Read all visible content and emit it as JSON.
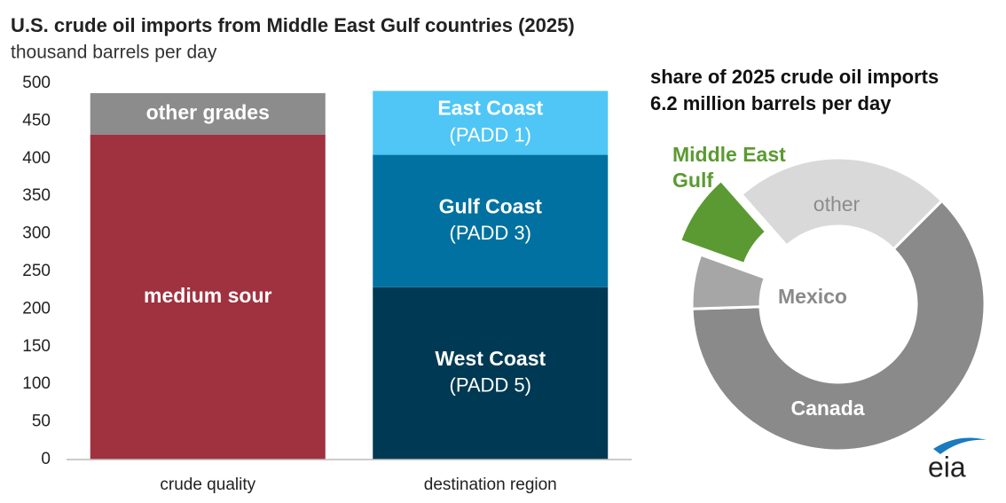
{
  "chart_data": [
    {
      "type": "stacked_bar",
      "title": "U.S. crude oil imports from Middle East Gulf countries (2025)",
      "subtitle": "thousand barrels per day",
      "categories": [
        "crude quality",
        "destination region"
      ],
      "series": [
        {
          "name": "medium sour",
          "color": "#a0313f",
          "values": [
            432,
            null
          ]
        },
        {
          "name": "other grades",
          "color": "#8c8c8c",
          "values": [
            55,
            null
          ]
        },
        {
          "name": "West Coast",
          "sublabel": "(PADD 5)",
          "color": "#003953",
          "values": [
            null,
            229
          ]
        },
        {
          "name": "Gulf Coast",
          "sublabel": "(PADD 3)",
          "color": "#0071a0",
          "values": [
            null,
            176
          ]
        },
        {
          "name": "East Coast",
          "sublabel": "(PADD 1)",
          "color": "#4fc6f5",
          "values": [
            null,
            85
          ]
        }
      ],
      "ylim": [
        0,
        500
      ],
      "yticks": [
        0,
        50,
        100,
        150,
        200,
        250,
        300,
        350,
        400,
        450,
        500
      ],
      "grid": false
    },
    {
      "type": "donut",
      "title": "share of 2025 crude oil imports",
      "subtitle": "6.2 million barrels per day",
      "categories": [
        "Canada",
        "Mexico",
        "Middle East Gulf",
        "other"
      ],
      "values": [
        62,
        6,
        8,
        24
      ],
      "colors": [
        "#8a8a8a",
        "#a6a6a6",
        "#5b9a32",
        "#d9d9d9"
      ],
      "exploded": [
        false,
        false,
        true,
        false
      ]
    }
  ],
  "logo": "eia"
}
